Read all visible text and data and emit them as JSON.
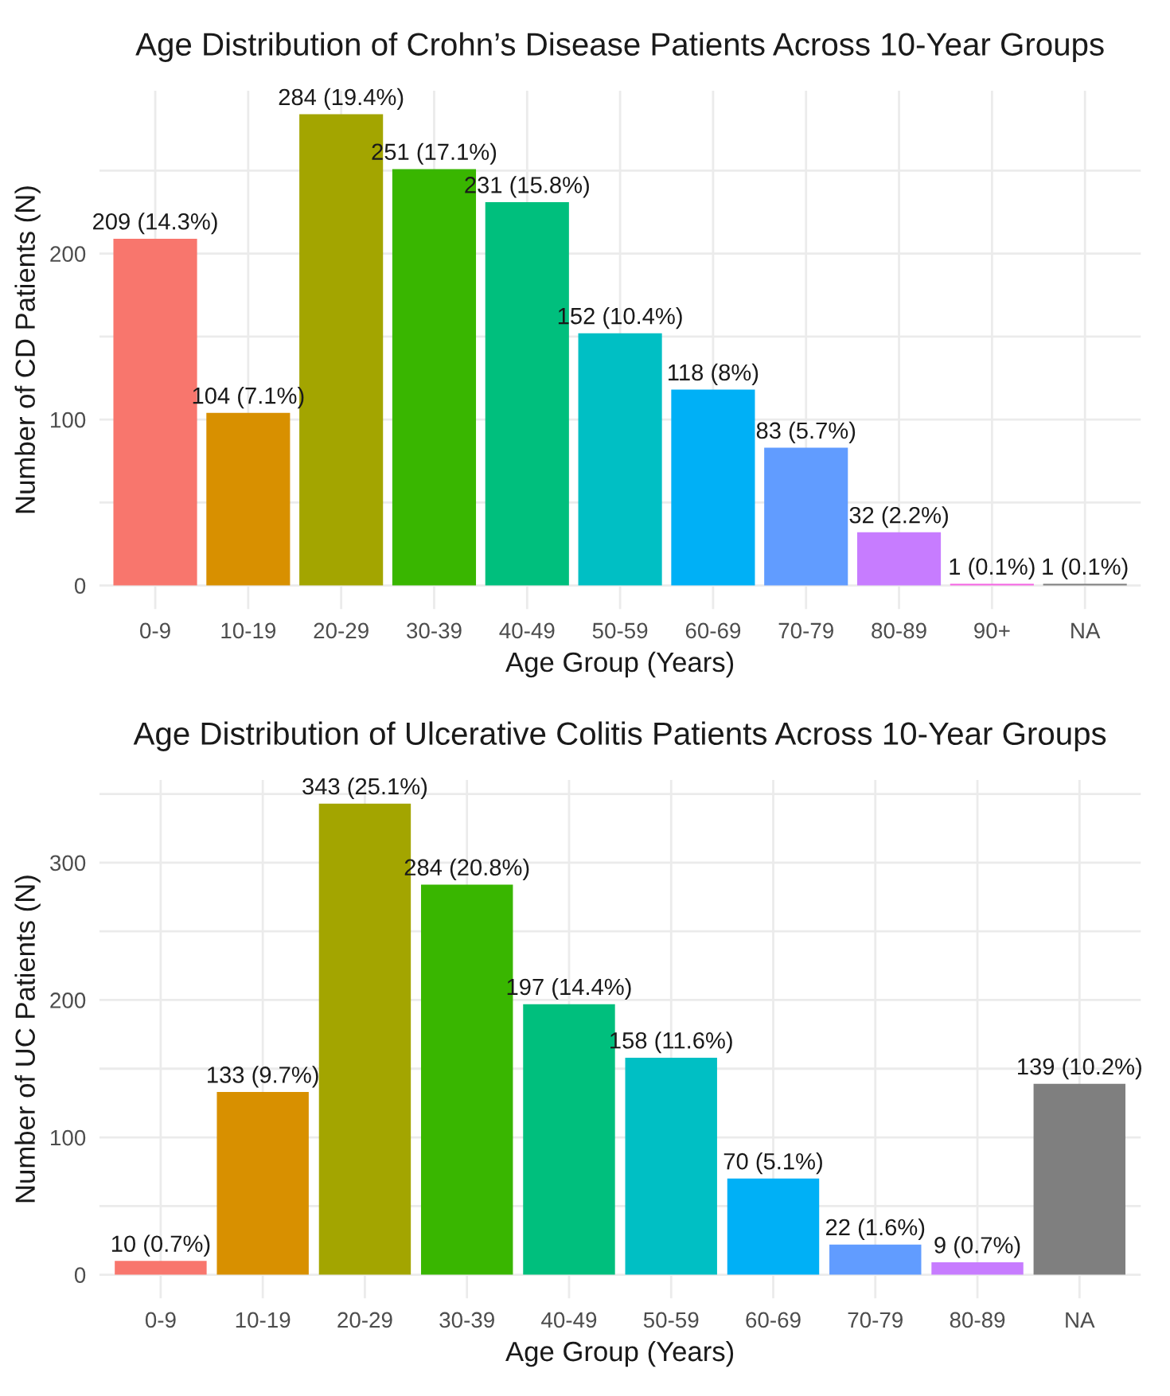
{
  "chart_data": [
    {
      "type": "bar",
      "title": "Age Distribution of Crohn’s Disease Patients Across 10-Year Groups",
      "xlabel": "Age Group (Years)",
      "ylabel": "Number of CD Patients (N)",
      "categories": [
        "0-9",
        "10-19",
        "20-29",
        "30-39",
        "40-49",
        "50-59",
        "60-69",
        "70-79",
        "80-89",
        "90+",
        "NA"
      ],
      "values": [
        209,
        104,
        284,
        251,
        231,
        152,
        118,
        83,
        32,
        1,
        1
      ],
      "colors": [
        "#f8766d",
        "#d89000",
        "#a3a500",
        "#39b600",
        "#00bf7d",
        "#00bfc4",
        "#00b0f6",
        "#619cff",
        "#c77cff",
        "#f564e3",
        "#7f7f7f"
      ],
      "value_labels": [
        "209 (14.3%)",
        "104 (7.1%)",
        "284 (19.4%)",
        "251 (17.1%)",
        "231 (15.8%)",
        "152 (10.4%)",
        "118 (8%)",
        "83 (5.7%)",
        "32 (2.2%)",
        "1 (0.1%)",
        "1 (0.1%)"
      ],
      "ylim": [
        -14.2,
        298.2
      ],
      "yticks": [
        0,
        {
          "value": 50,
          "label": null
        },
        100,
        {
          "value": 150,
          "label": null
        },
        200,
        {
          "value": 250,
          "label": null
        }
      ],
      "grid": true
    },
    {
      "type": "bar",
      "title": "Age Distribution of Ulcerative Colitis Patients Across 10-Year Groups",
      "xlabel": "Age Group (Years)",
      "ylabel": "Number of UC Patients (N)",
      "categories": [
        "0-9",
        "10-19",
        "20-29",
        "30-39",
        "40-49",
        "50-59",
        "60-69",
        "70-79",
        "80-89",
        "NA"
      ],
      "values": [
        10,
        133,
        343,
        284,
        197,
        158,
        70,
        22,
        9,
        139
      ],
      "colors": [
        "#f8766d",
        "#d89000",
        "#a3a500",
        "#39b600",
        "#00bf7d",
        "#00bfc4",
        "#00b0f6",
        "#619cff",
        "#c77cff",
        "#7f7f7f"
      ],
      "value_labels": [
        "10 (0.7%)",
        "133 (9.7%)",
        "343 (25.1%)",
        "284 (20.8%)",
        "197 (14.4%)",
        "158 (11.6%)",
        "70 (5.1%)",
        "22 (1.6%)",
        "9 (0.7%)",
        "139 (10.2%)"
      ],
      "ylim": [
        -17.15,
        360.15
      ],
      "yticks": [
        0,
        {
          "value": 50,
          "label": null
        },
        100,
        {
          "value": 150,
          "label": null
        },
        200,
        {
          "value": 250,
          "label": null
        },
        300,
        {
          "value": 350,
          "label": null
        }
      ],
      "grid": true
    }
  ]
}
